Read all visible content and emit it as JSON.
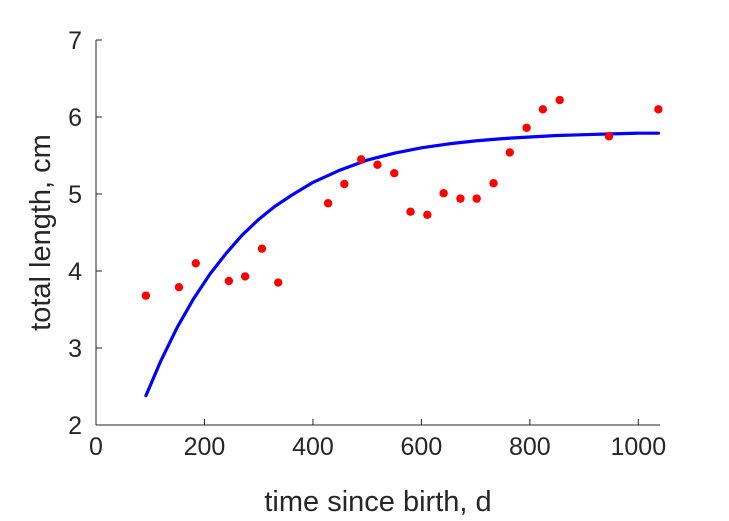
{
  "chart_data": {
    "type": "scatter",
    "title": "",
    "xlabel": "time since birth, d",
    "ylabel": "total length, cm",
    "xlim": [
      0,
      1040
    ],
    "ylim": [
      2,
      7
    ],
    "xticks": [
      0,
      200,
      400,
      600,
      800,
      1000
    ],
    "yticks": [
      2,
      3,
      4,
      5,
      6,
      7
    ],
    "grid": false,
    "series": [
      {
        "kind": "points",
        "color": "#ff0000",
        "x": [
          92,
          153,
          184,
          245,
          275,
          306,
          336,
          428,
          458,
          489,
          519,
          550,
          580,
          611,
          641,
          672,
          702,
          733,
          763,
          794,
          824,
          855,
          946,
          1037
        ],
        "y": [
          3.68,
          3.79,
          4.1,
          3.87,
          3.93,
          4.29,
          3.85,
          4.88,
          5.13,
          5.45,
          5.38,
          5.27,
          4.77,
          4.73,
          5.01,
          4.94,
          4.94,
          5.14,
          5.54,
          5.86,
          6.1,
          6.22,
          5.75,
          6.1
        ]
      },
      {
        "kind": "curve",
        "color": "#0000ff",
        "x": [
          92,
          120,
          150,
          180,
          210,
          240,
          270,
          300,
          330,
          360,
          400,
          450,
          500,
          550,
          600,
          650,
          700,
          750,
          800,
          850,
          900,
          950,
          1000,
          1037
        ],
        "y": [
          2.38,
          2.84,
          3.27,
          3.64,
          3.96,
          4.23,
          4.47,
          4.67,
          4.84,
          4.98,
          5.15,
          5.31,
          5.44,
          5.53,
          5.6,
          5.65,
          5.69,
          5.72,
          5.74,
          5.76,
          5.77,
          5.78,
          5.79,
          5.79
        ]
      }
    ]
  }
}
